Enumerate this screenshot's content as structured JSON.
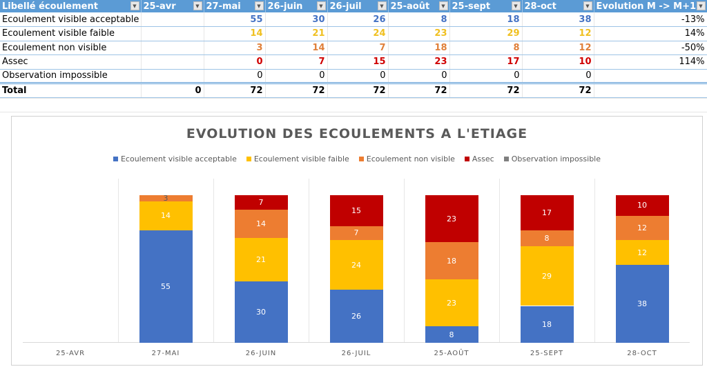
{
  "table": {
    "headers": [
      "Libellé écoulement",
      "25-avr",
      "27-mai",
      "26-juin",
      "26-juil",
      "25-août",
      "25-sept",
      "28-oct",
      "Evolution M -> M+1"
    ],
    "rows": [
      {
        "label": "Ecoulement visible acceptable",
        "values": [
          "",
          "55",
          "30",
          "26",
          "8",
          "18",
          "38"
        ],
        "evolution": "-13%",
        "color": "#4472c4"
      },
      {
        "label": "Ecoulement visible faible",
        "values": [
          "",
          "14",
          "21",
          "24",
          "23",
          "29",
          "12"
        ],
        "evolution": "14%",
        "color": "#f0c020"
      },
      {
        "label": "Ecoulement non visible",
        "values": [
          "",
          "3",
          "14",
          "7",
          "18",
          "8",
          "12"
        ],
        "evolution": "-50%",
        "color": "#e0803a"
      },
      {
        "label": "Assec",
        "values": [
          "",
          "0",
          "7",
          "15",
          "23",
          "17",
          "10"
        ],
        "evolution": "114%",
        "color": "#d00000"
      },
      {
        "label": "Observation impossible",
        "values": [
          "",
          "0",
          "0",
          "0",
          "0",
          "0",
          "0"
        ],
        "evolution": "",
        "color": "#000000"
      }
    ],
    "total": {
      "label": "Total",
      "values": [
        "0",
        "72",
        "72",
        "72",
        "72",
        "72",
        "72"
      ]
    }
  },
  "chart_data": {
    "type": "bar",
    "stacked": true,
    "title": "EVOLUTION DES ECOULEMENTS A L'ETIAGE",
    "categories": [
      "25-AVR",
      "27-MAI",
      "26-JUIN",
      "26-JUIL",
      "25-AOÛT",
      "25-SEPT",
      "28-OCT"
    ],
    "legend_position": "top",
    "ylim": [
      0,
      72
    ],
    "series": [
      {
        "name": "Ecoulement visible acceptable",
        "color": "#4472c4",
        "values": [
          0,
          55,
          30,
          26,
          8,
          18,
          38
        ]
      },
      {
        "name": "Ecoulement visible faible",
        "color": "#ffc000",
        "values": [
          0,
          14,
          21,
          24,
          23,
          29,
          12
        ]
      },
      {
        "name": "Ecoulement non visible",
        "color": "#ed7d31",
        "values": [
          0,
          3,
          14,
          7,
          18,
          8,
          12
        ]
      },
      {
        "name": "Assec",
        "color": "#c00000",
        "values": [
          0,
          0,
          7,
          15,
          23,
          17,
          10
        ]
      },
      {
        "name": "Observation impossible",
        "color": "#7f7f7f",
        "values": [
          0,
          0,
          0,
          0,
          0,
          0,
          0
        ]
      }
    ]
  }
}
